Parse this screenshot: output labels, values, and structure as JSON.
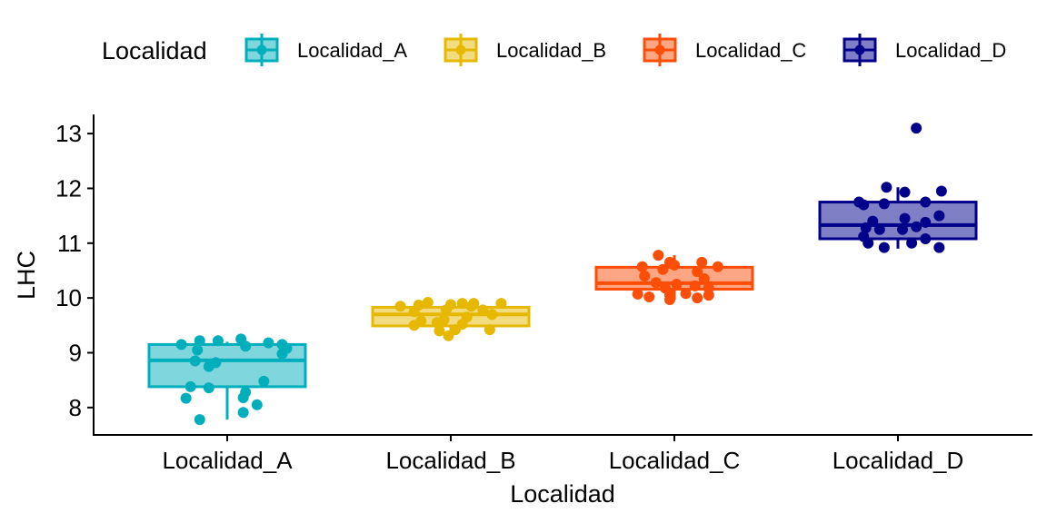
{
  "chart_data": {
    "type": "box",
    "xlabel": "Localidad",
    "ylabel": "LHC",
    "ylim": [
      7.5,
      13.35
    ],
    "yticks": [
      8,
      9,
      10,
      11,
      12,
      13
    ],
    "legend": {
      "title": "Localidad",
      "placement": "top"
    },
    "categories": [
      "Localidad_A",
      "Localidad_B",
      "Localidad_C",
      "Localidad_D"
    ],
    "series": [
      {
        "name": "Localidad_A",
        "color": "#00AFBB",
        "box": {
          "whisker_low": 7.78,
          "q1": 8.38,
          "median": 8.86,
          "q3": 9.15,
          "whisker_high": 9.2
        },
        "points": [
          [
            -0.2,
            9.15
          ],
          [
            -0.12,
            9.22
          ],
          [
            -0.04,
            9.22
          ],
          [
            0.06,
            9.25
          ],
          [
            0.18,
            9.18
          ],
          [
            0.24,
            9.15
          ],
          [
            -0.13,
            9.05
          ],
          [
            0.08,
            9.12
          ],
          [
            0.26,
            9.08
          ],
          [
            0.24,
            8.98
          ],
          [
            -0.14,
            8.85
          ],
          [
            -0.05,
            8.82
          ],
          [
            -0.08,
            8.75
          ],
          [
            0.08,
            8.28
          ],
          [
            0.16,
            8.48
          ],
          [
            -0.16,
            8.38
          ],
          [
            -0.08,
            8.36
          ],
          [
            -0.18,
            8.17
          ],
          [
            0.07,
            8.18
          ],
          [
            0.13,
            8.05
          ],
          [
            0.07,
            7.91
          ],
          [
            -0.12,
            7.78
          ]
        ]
      },
      {
        "name": "Localidad_B",
        "color": "#E7B800",
        "box": {
          "whisker_low": 9.33,
          "q1": 9.49,
          "median": 9.7,
          "q3": 9.83,
          "whisker_high": 9.93
        },
        "points": [
          [
            -0.22,
            9.85
          ],
          [
            -0.14,
            9.87
          ],
          [
            -0.1,
            9.92
          ],
          [
            0.05,
            9.9
          ],
          [
            0.1,
            9.9
          ],
          [
            0.22,
            9.9
          ],
          [
            0.0,
            9.88
          ],
          [
            0.09,
            9.85
          ],
          [
            -0.16,
            9.75
          ],
          [
            -0.02,
            9.78
          ],
          [
            0.14,
            9.78
          ],
          [
            0.18,
            9.7
          ],
          [
            0.07,
            9.65
          ],
          [
            -0.03,
            9.6
          ],
          [
            -0.13,
            9.58
          ],
          [
            -0.16,
            9.5
          ],
          [
            -0.06,
            9.55
          ],
          [
            0.05,
            9.52
          ],
          [
            0.02,
            9.42
          ],
          [
            0.17,
            9.42
          ],
          [
            -0.05,
            9.4
          ],
          [
            -0.01,
            9.31
          ]
        ]
      },
      {
        "name": "Localidad_C",
        "color": "#FC4E07",
        "box": {
          "whisker_low": 9.97,
          "q1": 10.16,
          "median": 10.27,
          "q3": 10.56,
          "whisker_high": 10.78
        },
        "points": [
          [
            -0.07,
            10.78
          ],
          [
            -0.02,
            10.65
          ],
          [
            0.0,
            10.6
          ],
          [
            0.12,
            10.65
          ],
          [
            -0.14,
            10.57
          ],
          [
            0.19,
            10.57
          ],
          [
            -0.05,
            10.52
          ],
          [
            0.1,
            10.48
          ],
          [
            -0.13,
            10.4
          ],
          [
            0.13,
            10.35
          ],
          [
            -0.08,
            10.28
          ],
          [
            0.01,
            10.25
          ],
          [
            0.09,
            10.22
          ],
          [
            -0.04,
            10.18
          ],
          [
            0.15,
            10.18
          ],
          [
            -0.16,
            10.07
          ],
          [
            -0.11,
            10.02
          ],
          [
            0.15,
            10.05
          ],
          [
            -0.02,
            10.05
          ],
          [
            0.1,
            10.0
          ],
          [
            0.05,
            10.08
          ],
          [
            -0.02,
            9.97
          ]
        ]
      },
      {
        "name": "Localidad_D",
        "color": "#00008B",
        "box": {
          "whisker_low": 10.9,
          "q1": 11.08,
          "median": 11.33,
          "q3": 11.75,
          "whisker_high": 12.02
        },
        "points": [
          [
            0.08,
            13.1
          ],
          [
            -0.05,
            12.02
          ],
          [
            0.03,
            11.93
          ],
          [
            0.19,
            11.95
          ],
          [
            -0.17,
            11.75
          ],
          [
            -0.15,
            11.7
          ],
          [
            -0.06,
            11.72
          ],
          [
            0.12,
            11.75
          ],
          [
            0.18,
            11.5
          ],
          [
            -0.11,
            11.4
          ],
          [
            0.03,
            11.45
          ],
          [
            0.12,
            11.38
          ],
          [
            -0.14,
            11.28
          ],
          [
            -0.08,
            11.25
          ],
          [
            0.02,
            11.25
          ],
          [
            0.08,
            11.3
          ],
          [
            -0.15,
            11.12
          ],
          [
            0.12,
            11.08
          ],
          [
            -0.13,
            11.0
          ],
          [
            0.06,
            11.0
          ],
          [
            -0.06,
            10.92
          ],
          [
            0.18,
            10.92
          ]
        ]
      }
    ]
  }
}
